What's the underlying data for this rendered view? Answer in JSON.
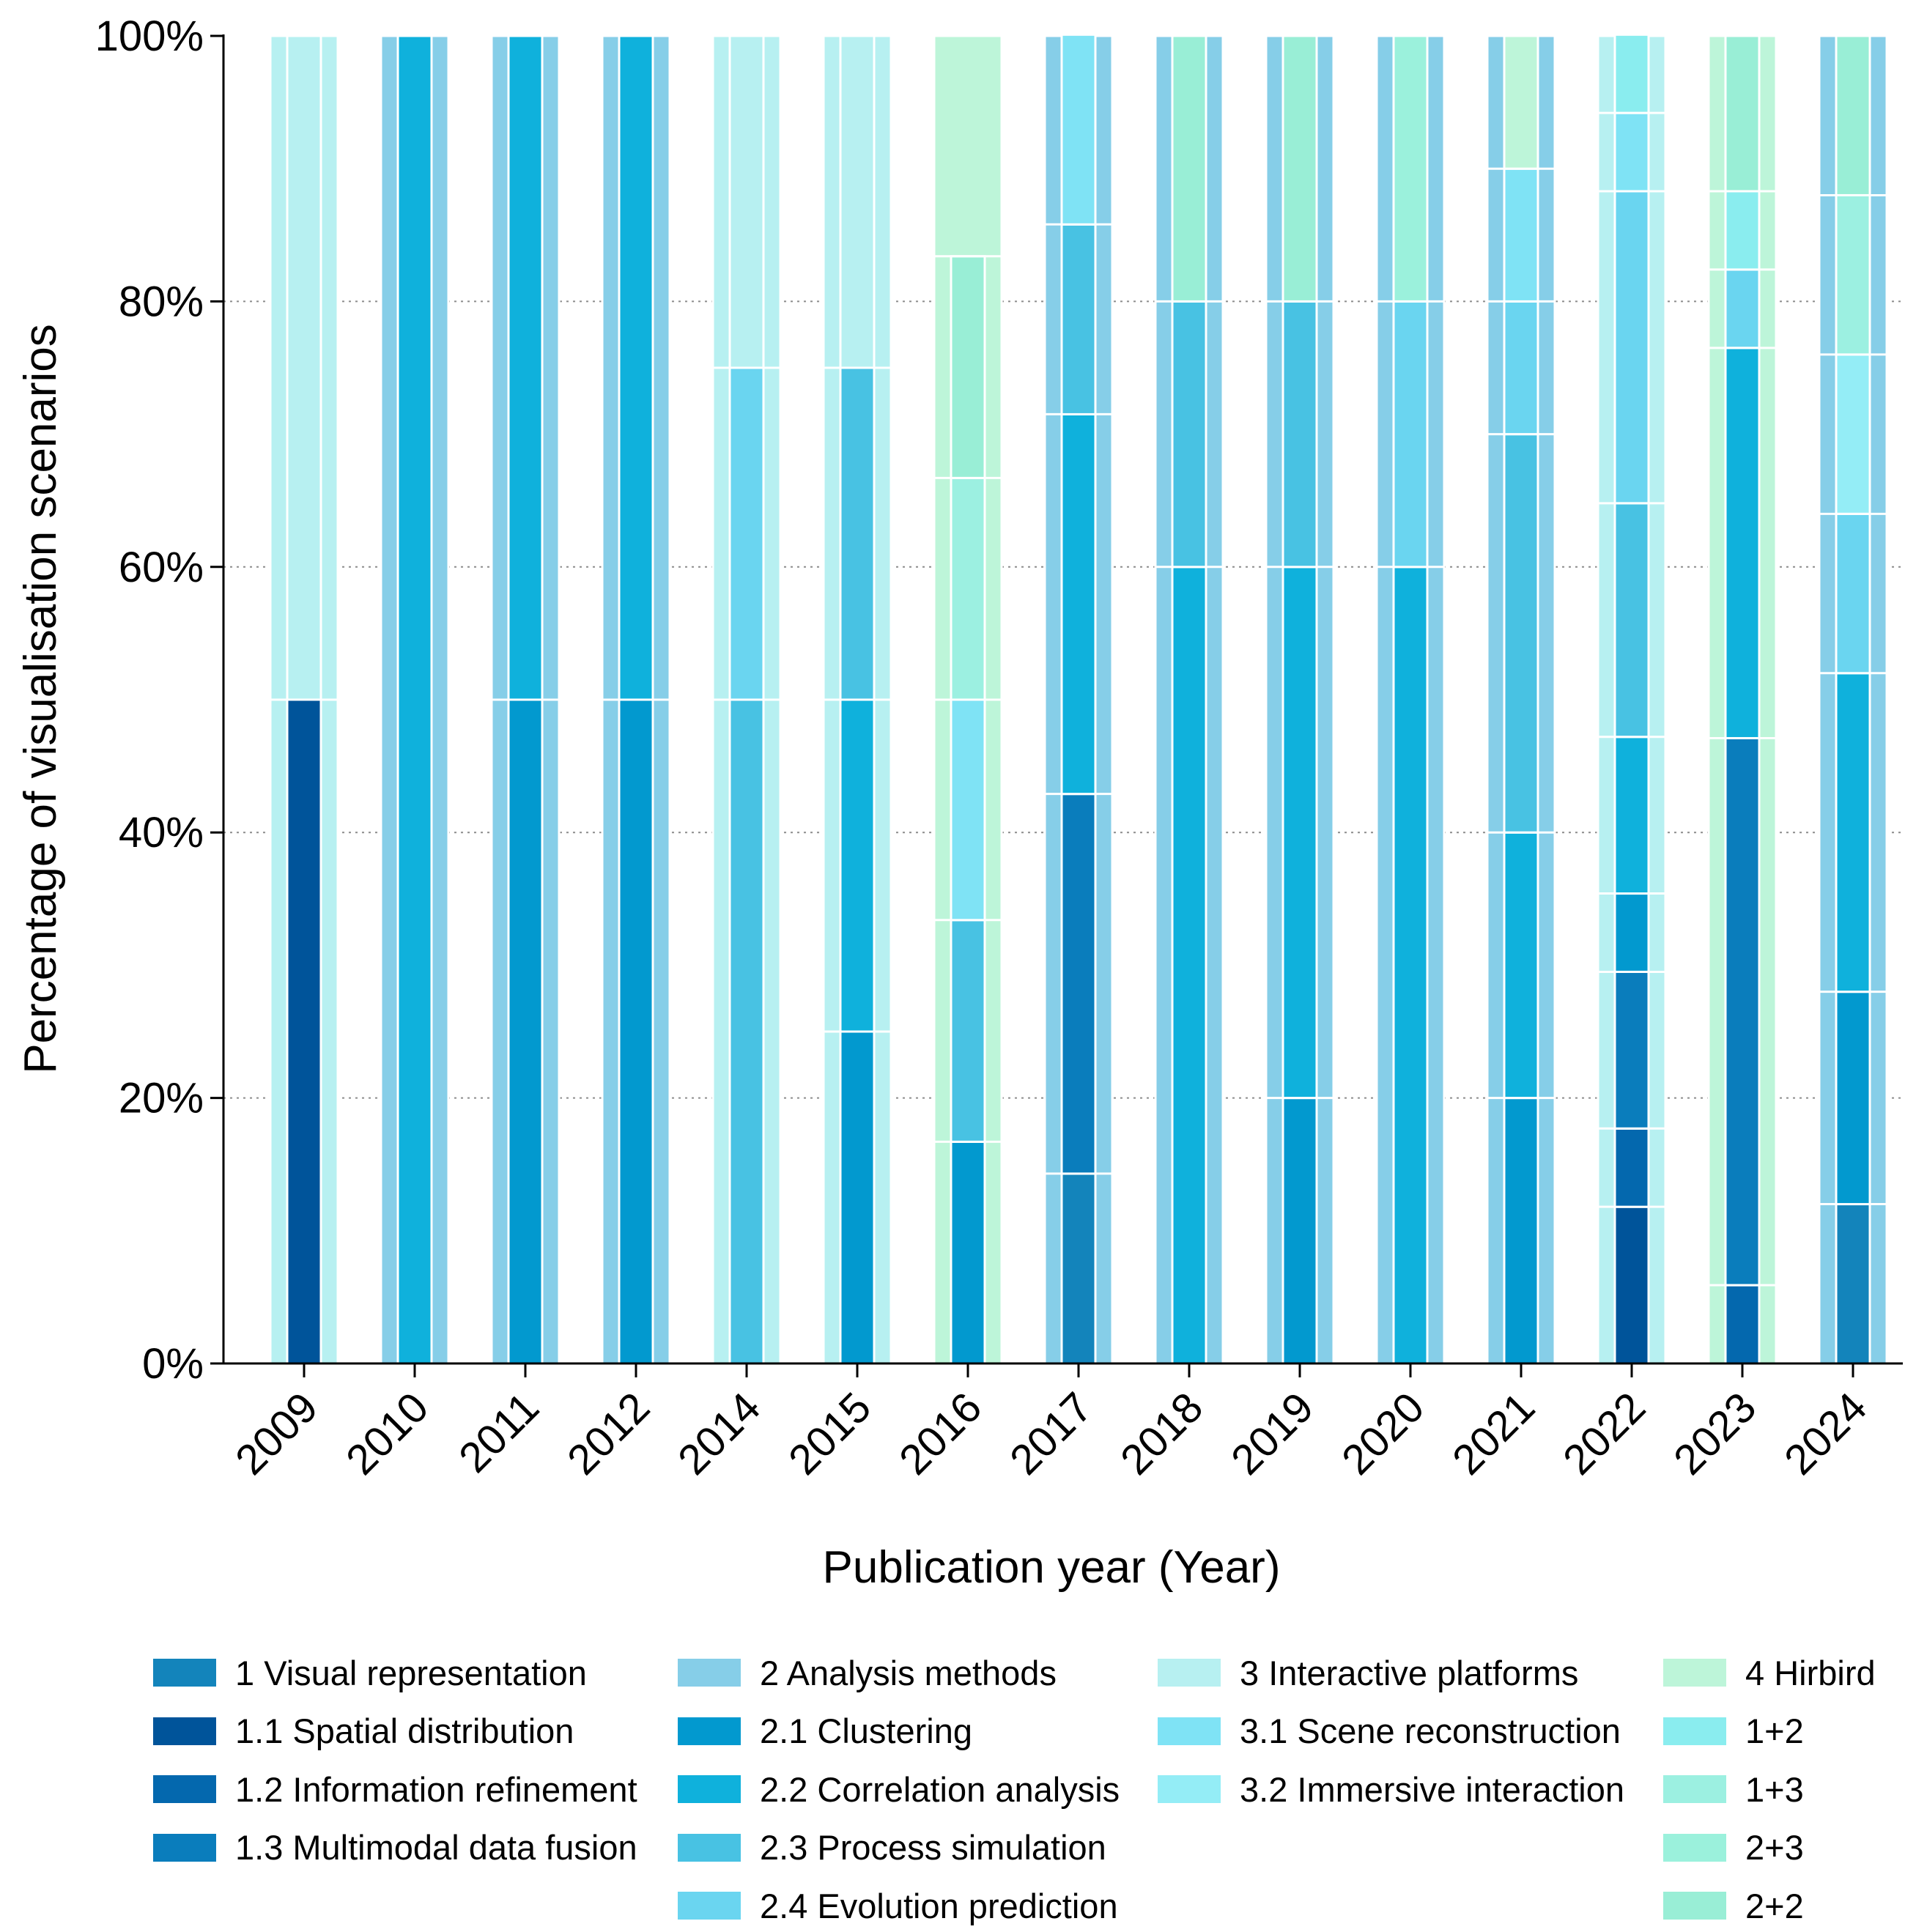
{
  "chart_data": {
    "type": "bar",
    "stacked": true,
    "title": "",
    "xlabel": "Publication year (Year)",
    "ylabel": "Percentage of visualisation scenarios",
    "ylim": [
      0,
      100
    ],
    "y_ticks": [
      "0%",
      "20%",
      "40%",
      "60%",
      "80%",
      "100%"
    ],
    "grid": "horizontal dotted",
    "categories": [
      "2009",
      "2010",
      "2011",
      "2012",
      "2014",
      "2015",
      "2016",
      "2017",
      "2018",
      "2019",
      "2020",
      "2021",
      "2022",
      "2023",
      "2024"
    ],
    "series": [
      {
        "name": "1 Visual representation",
        "color": "#1384BB",
        "values": [
          0,
          0,
          0,
          0,
          0,
          0,
          0,
          14.3,
          0,
          0,
          0,
          0,
          0,
          0,
          12
        ]
      },
      {
        "name": "1.1 Spatial distribution",
        "color": "#00549A",
        "values": [
          50,
          0,
          0,
          0,
          0,
          0,
          0,
          0,
          0,
          0,
          0,
          0,
          11.8,
          0,
          0
        ]
      },
      {
        "name": "1.2 Information refinement",
        "color": "#0468AE",
        "values": [
          0,
          0,
          0,
          0,
          0,
          0,
          0,
          0,
          0,
          0,
          0,
          0,
          5.9,
          5.9,
          0
        ]
      },
      {
        "name": "1.3 Multimodal data fusion",
        "color": "#0A7DBC",
        "values": [
          0,
          0,
          0,
          0,
          0,
          0,
          0,
          28.6,
          0,
          0,
          0,
          0,
          11.8,
          41.2,
          0
        ]
      },
      {
        "name": "2 Analysis methods",
        "color": "#86CEE8",
        "values": [
          0,
          0,
          0,
          0,
          0,
          0,
          0,
          0,
          0,
          0,
          0,
          0,
          0,
          0,
          0
        ]
      },
      {
        "name": "2.1 Clustering",
        "color": "#0299CF",
        "values": [
          0,
          0,
          50,
          50,
          0,
          25,
          16.7,
          0,
          0,
          20,
          0,
          20,
          5.9,
          0,
          16
        ]
      },
      {
        "name": "2.2 Correlation analysis",
        "color": "#0FB1DC",
        "values": [
          0,
          100,
          50,
          50,
          0,
          25,
          0,
          28.6,
          60,
          40,
          60,
          20,
          11.8,
          29.4,
          24
        ]
      },
      {
        "name": "2.3 Process simulation",
        "color": "#48C2E3",
        "values": [
          0,
          0,
          0,
          0,
          50,
          25,
          16.7,
          14.3,
          20,
          20,
          0,
          30,
          17.6,
          0,
          0
        ]
      },
      {
        "name": "2.4 Evolution prediction",
        "color": "#6AD5F0",
        "values": [
          0,
          0,
          0,
          0,
          25,
          0,
          0,
          0,
          0,
          0,
          20,
          10,
          23.5,
          5.9,
          12
        ]
      },
      {
        "name": "3 Interactive platforms",
        "color": "#B7F0F1",
        "values": [
          50,
          0,
          0,
          0,
          25,
          25,
          0,
          0,
          0,
          0,
          0,
          0,
          0,
          0,
          0
        ]
      },
      {
        "name": "3.1 Scene reconstruction",
        "color": "#7FE3F5",
        "values": [
          0,
          0,
          0,
          0,
          0,
          0,
          16.6,
          14.3,
          0,
          0,
          0,
          10,
          5.9,
          0,
          0
        ]
      },
      {
        "name": "3.2 Immersive interaction",
        "color": "#94EDF6",
        "values": [
          0,
          0,
          0,
          0,
          0,
          0,
          0,
          0,
          0,
          0,
          0,
          0,
          0,
          0,
          12
        ]
      },
      {
        "name": "4 Hirbird",
        "color": "#BDF5D9",
        "values": [
          0,
          0,
          0,
          0,
          0,
          0,
          0,
          0,
          0,
          0,
          0,
          10,
          0,
          0,
          0
        ]
      },
      {
        "name": "1+2",
        "color": "#8AEDEF",
        "values": [
          0,
          0,
          0,
          0,
          0,
          0,
          0,
          0,
          0,
          0,
          0,
          0,
          5.9,
          5.9,
          0
        ]
      },
      {
        "name": "1+3",
        "color": "#9CF0E1",
        "values": [
          0,
          0,
          0,
          0,
          0,
          0,
          16.7,
          0,
          0,
          0,
          0,
          0,
          0,
          0,
          12
        ]
      },
      {
        "name": "2+3",
        "color": "#9BF1DC",
        "values": [
          0,
          0,
          0,
          0,
          0,
          0,
          0,
          0,
          0,
          0,
          20,
          0,
          0,
          0,
          0
        ]
      },
      {
        "name": "2+2",
        "color": "#99EED6",
        "values": [
          0,
          0,
          0,
          0,
          0,
          0,
          16.7,
          0,
          20,
          20,
          0,
          0,
          0,
          11.7,
          12
        ]
      }
    ],
    "outer_colors": [
      "#B7F0F1",
      "#86CEE8",
      "#86CEE8",
      "#86CEE8",
      "#B7F0F1",
      "#B7F0F1",
      "#BDF5D9",
      "#86CEE8",
      "#86CEE8",
      "#86CEE8",
      "#86CEE8",
      "#86CEE8",
      "#B7F0F1",
      "#BDF5D9",
      "#86CEE8"
    ],
    "legend_position": "bottom"
  }
}
